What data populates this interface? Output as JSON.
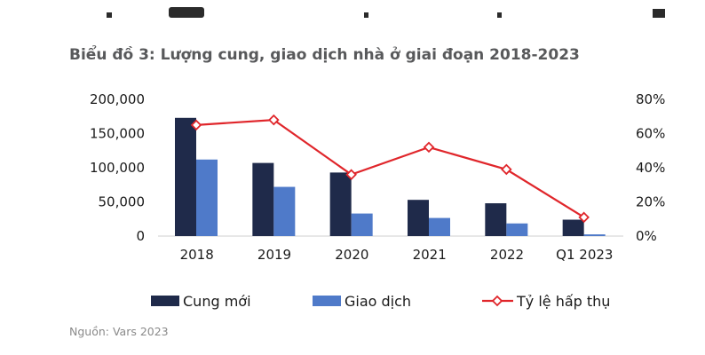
{
  "title": "Biểu đồ 3: Lượng cung, giao dịch nhà ở giai đoạn 2018-2023",
  "source": "Nguồn: Vars 2023",
  "colors": {
    "cung_moi": "#1f2a4a",
    "giao_dich": "#4f7ac9",
    "ty_le": "#e0262b",
    "axis": "#cfcfcf"
  },
  "chart_data": {
    "type": "bar",
    "categories": [
      "2018",
      "2019",
      "2020",
      "2021",
      "2022",
      "Q1 2023"
    ],
    "series": [
      {
        "name": "Cung mới",
        "type": "bar",
        "axis": "left",
        "values": [
          173000,
          107000,
          93000,
          53000,
          48000,
          24000
        ]
      },
      {
        "name": "Giao dịch",
        "type": "bar",
        "axis": "left",
        "values": [
          112000,
          72000,
          33000,
          26500,
          18500,
          2500
        ]
      },
      {
        "name": "Tỷ lệ hấp thụ",
        "type": "line",
        "axis": "right",
        "marker": "diamond",
        "values": [
          65,
          68,
          36,
          52,
          39,
          11
        ]
      }
    ],
    "y_left": {
      "ylim": [
        0,
        200000
      ],
      "ticks": [
        "0",
        "50,000",
        "100,000",
        "150,000",
        "200,000"
      ]
    },
    "y_right": {
      "ylim": [
        0,
        80
      ],
      "ticks": [
        "0%",
        "20%",
        "40%",
        "60%",
        "80%"
      ]
    },
    "legend_position": "bottom",
    "grid": false
  }
}
